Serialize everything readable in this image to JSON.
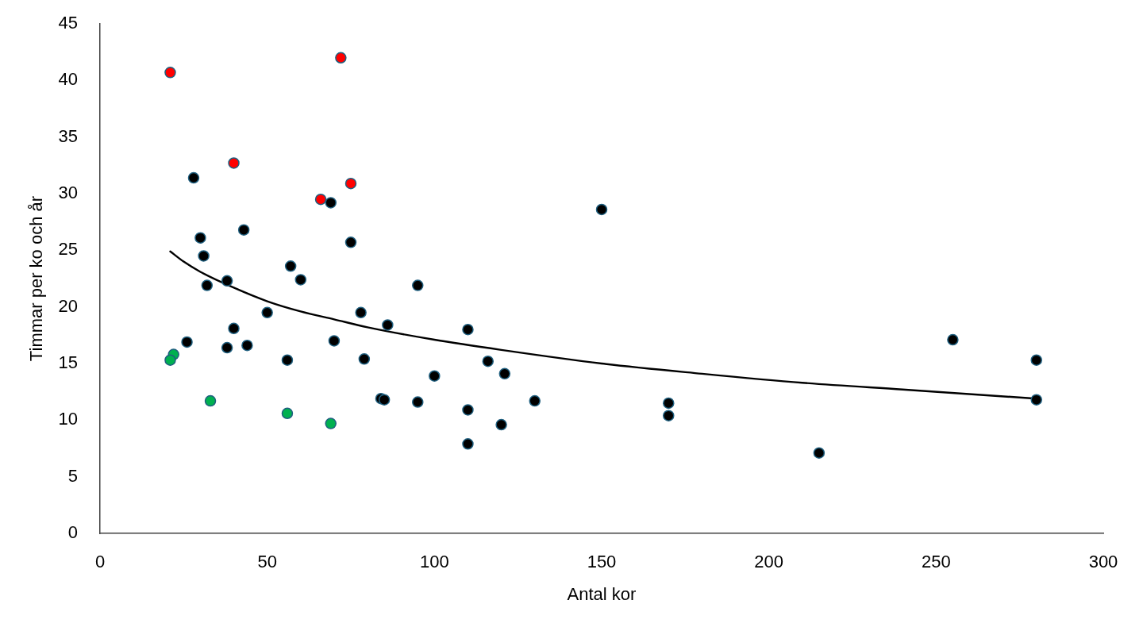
{
  "chart_data": {
    "type": "scatter",
    "xlabel": "Antal kor",
    "ylabel": "Timmar per ko och år",
    "xlim": [
      0,
      300
    ],
    "xticks": [
      0,
      50,
      100,
      150,
      200,
      250,
      300
    ],
    "ylim": [
      0,
      45
    ],
    "yticks": [
      0,
      5,
      10,
      15,
      20,
      25,
      30,
      35,
      40,
      45
    ],
    "marker": "circle",
    "series": [
      {
        "color": "#000000",
        "x": [
          28,
          69,
          43,
          30,
          75,
          31,
          57,
          60,
          32,
          38,
          50,
          78,
          86,
          40,
          26,
          38,
          44,
          70,
          56,
          79,
          84,
          85,
          95,
          150,
          110,
          116,
          121,
          100,
          95,
          130,
          110,
          120,
          110,
          170,
          170,
          215,
          255,
          280,
          280
        ],
        "values": [
          31.4,
          29.2,
          26.8,
          26.1,
          25.7,
          24.5,
          23.6,
          22.4,
          21.9,
          22.3,
          19.5,
          19.5,
          18.4,
          18.1,
          16.9,
          16.4,
          16.6,
          17.0,
          15.3,
          15.4,
          11.9,
          11.8,
          21.9,
          28.6,
          18.0,
          15.2,
          14.1,
          13.9,
          11.6,
          11.7,
          10.9,
          9.6,
          7.9,
          11.5,
          10.4,
          7.1,
          17.1,
          15.3,
          11.8
        ]
      },
      {
        "color": "#ff0000",
        "x": [
          21,
          72,
          40,
          66,
          75
        ],
        "values": [
          40.7,
          42.0,
          32.7,
          29.5,
          30.9
        ]
      },
      {
        "color": "#00b050",
        "x": [
          22,
          21,
          33,
          56,
          69
        ],
        "values": [
          15.8,
          15.3,
          11.7,
          10.6,
          9.7
        ]
      },
      {
        "type": "line",
        "color": "#000000",
        "marker": "none",
        "line_style": "solid",
        "x": [
          21,
          25,
          30,
          40,
          50,
          60,
          70,
          80,
          100,
          120,
          150,
          180,
          210,
          240,
          280
        ],
        "values": [
          24.9,
          24.0,
          23.1,
          21.7,
          20.5,
          19.6,
          18.9,
          18.2,
          17.1,
          16.2,
          15.0,
          14.1,
          13.3,
          12.7,
          11.9
        ]
      }
    ]
  }
}
